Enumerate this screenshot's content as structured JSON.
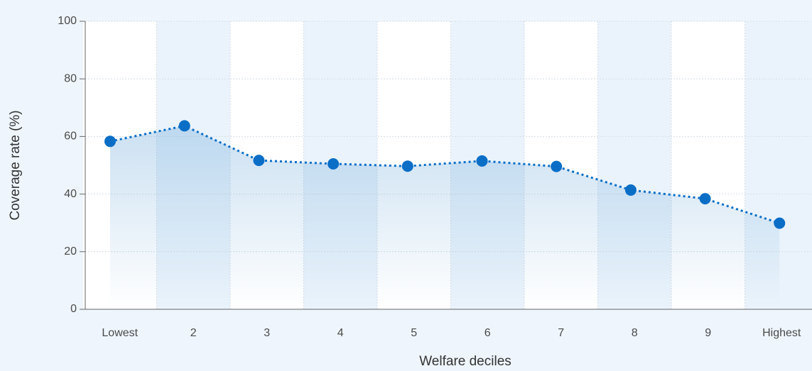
{
  "chart_data": {
    "type": "line",
    "x_label": "Welfare deciles",
    "y_label": "Coverage rate (%)",
    "categories": [
      "Lowest",
      "2",
      "3",
      "4",
      "5",
      "6",
      "7",
      "8",
      "9",
      "Highest"
    ],
    "series": [
      {
        "name": "Coverage rate",
        "color": "#0a6ec7",
        "values": [
          58.3,
          63.7,
          51.7,
          50.5,
          49.7,
          51.5,
          49.6,
          41.4,
          38.4,
          29.9
        ]
      }
    ],
    "ylim": [
      0,
      100
    ],
    "yticks": [
      0,
      20,
      40,
      60,
      80,
      100
    ],
    "grid": true
  }
}
